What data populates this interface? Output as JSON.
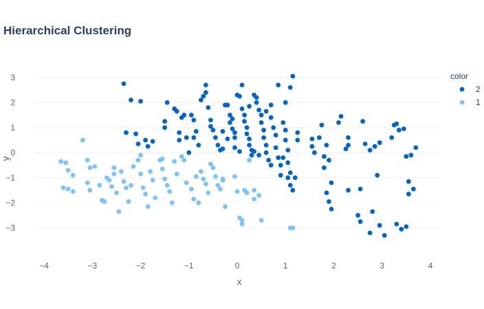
{
  "chart_data": {
    "type": "scatter",
    "title": "Hierarchical Clustering",
    "xlabel": "x",
    "ylabel": "y",
    "xlim": [
      -4.2,
      4.2
    ],
    "ylim": [
      -4.1,
      3.35
    ],
    "x_ticks": [
      -4,
      -3,
      -2,
      -1,
      0,
      1,
      2,
      3,
      4
    ],
    "y_ticks": [
      -3,
      -2,
      -1,
      0,
      1,
      2,
      3
    ],
    "x_tick_labels": [
      "−4",
      "−3",
      "−2",
      "−1",
      "0",
      "1",
      "2",
      "3",
      "4"
    ],
    "y_tick_labels": [
      "−3",
      "−2",
      "−1",
      "0",
      "1",
      "2",
      "3"
    ],
    "grid": "horizontal",
    "legend_title": "color",
    "legend_placement": "top-right",
    "series": [
      {
        "name": "2",
        "color": "#0064c8",
        "points": [
          [
            -2.35,
            2.75
          ],
          [
            -2.2,
            2.1
          ],
          [
            -2.0,
            2.05
          ],
          [
            -2.3,
            0.8
          ],
          [
            -2.1,
            0.75
          ],
          [
            -2.05,
            0.35
          ],
          [
            -1.9,
            0.5
          ],
          [
            -1.85,
            0.25
          ],
          [
            -1.75,
            0.45
          ],
          [
            -1.5,
            1.25
          ],
          [
            -1.5,
            1.0
          ],
          [
            -1.45,
            2.0
          ],
          [
            -1.3,
            1.75
          ],
          [
            -1.25,
            1.65
          ],
          [
            -1.15,
            1.4
          ],
          [
            -1.1,
            1.5
          ],
          [
            -1.2,
            0.8
          ],
          [
            -1.2,
            0.5
          ],
          [
            -1.05,
            0.6
          ],
          [
            -0.95,
            1.5
          ],
          [
            -0.9,
            1.3
          ],
          [
            -0.85,
            0.85
          ],
          [
            -0.9,
            0.6
          ],
          [
            -0.75,
            2.1
          ],
          [
            -0.7,
            2.25
          ],
          [
            -0.65,
            2.7
          ],
          [
            -0.65,
            2.4
          ],
          [
            -0.6,
            1.8
          ],
          [
            -0.55,
            1.3
          ],
          [
            -0.55,
            1.05
          ],
          [
            -0.5,
            0.9
          ],
          [
            -0.45,
            0.6
          ],
          [
            -0.4,
            0.3
          ],
          [
            -0.35,
            0.1
          ],
          [
            -0.3,
            0.15
          ],
          [
            -0.25,
            1.9
          ],
          [
            -0.2,
            1.9
          ],
          [
            -0.15,
            1.5
          ],
          [
            -0.15,
            1.2
          ],
          [
            -0.1,
            0.95
          ],
          [
            -0.05,
            0.8
          ],
          [
            -0.05,
            0.6
          ],
          [
            -0.05,
            0.2
          ],
          [
            0.0,
            2.3
          ],
          [
            0.05,
            2.25
          ],
          [
            0.1,
            2.7
          ],
          [
            0.1,
            1.75
          ],
          [
            0.15,
            1.5
          ],
          [
            0.15,
            1.25
          ],
          [
            0.2,
            1.0
          ],
          [
            0.2,
            0.75
          ],
          [
            0.25,
            0.55
          ],
          [
            0.25,
            0.3
          ],
          [
            0.3,
            0.1
          ],
          [
            0.3,
            -0.1
          ],
          [
            0.35,
            2.3
          ],
          [
            0.4,
            2.2
          ],
          [
            0.4,
            2.0
          ],
          [
            0.45,
            1.7
          ],
          [
            0.5,
            1.5
          ],
          [
            0.5,
            1.2
          ],
          [
            0.55,
            0.9
          ],
          [
            0.55,
            0.6
          ],
          [
            0.6,
            0.3
          ],
          [
            0.6,
            0.0
          ],
          [
            0.65,
            -0.3
          ],
          [
            0.7,
            1.9
          ],
          [
            0.7,
            1.4
          ],
          [
            0.75,
            1.0
          ],
          [
            0.8,
            0.7
          ],
          [
            0.8,
            0.2
          ],
          [
            0.85,
            -0.2
          ],
          [
            0.9,
            -0.5
          ],
          [
            0.9,
            -0.9
          ],
          [
            0.95,
            1.2
          ],
          [
            1.0,
            0.9
          ],
          [
            1.0,
            0.5
          ],
          [
            1.05,
            0.1
          ],
          [
            1.05,
            -0.4
          ],
          [
            1.1,
            -0.8
          ],
          [
            1.1,
            -1.3
          ],
          [
            1.15,
            3.05
          ],
          [
            1.1,
            2.6
          ],
          [
            1.15,
            -1.5
          ],
          [
            1.2,
            -1.0
          ],
          [
            1.25,
            0.5
          ],
          [
            1.25,
            0.8
          ],
          [
            0.85,
            2.7
          ],
          [
            1.0,
            2.0
          ],
          [
            0.45,
            -0.1
          ],
          [
            -0.3,
            0.85
          ],
          [
            -0.8,
            0.3
          ],
          [
            -1.0,
            0.0
          ],
          [
            -0.2,
            0.55
          ],
          [
            0.35,
            0.05
          ],
          [
            0.05,
            0.05
          ],
          [
            0.7,
            -0.5
          ],
          [
            0.95,
            -0.2
          ],
          [
            1.05,
            -1.0
          ],
          [
            0.6,
            1.65
          ],
          [
            -0.1,
            1.35
          ],
          [
            0.25,
            1.85
          ],
          [
            1.55,
            0.25
          ],
          [
            1.6,
            0.0
          ],
          [
            1.55,
            0.55
          ],
          [
            1.7,
            0.6
          ],
          [
            1.75,
            1.1
          ],
          [
            1.8,
            -0.15
          ],
          [
            1.85,
            0.3
          ],
          [
            1.9,
            -0.3
          ],
          [
            1.8,
            -0.6
          ],
          [
            1.95,
            -1.2
          ],
          [
            1.85,
            -1.6
          ],
          [
            1.9,
            -1.95
          ],
          [
            1.95,
            -2.25
          ],
          [
            2.1,
            1.2
          ],
          [
            2.15,
            1.45
          ],
          [
            2.3,
            0.6
          ],
          [
            2.3,
            0.3
          ],
          [
            2.25,
            0.15
          ],
          [
            2.3,
            -1.5
          ],
          [
            2.5,
            -2.5
          ],
          [
            2.55,
            -2.75
          ],
          [
            2.55,
            -1.45
          ],
          [
            2.6,
            1.25
          ],
          [
            2.65,
            0.35
          ],
          [
            2.75,
            0.1
          ],
          [
            2.8,
            -2.35
          ],
          [
            2.75,
            -3.2
          ],
          [
            2.85,
            0.25
          ],
          [
            2.9,
            -0.9
          ],
          [
            2.95,
            -2.9
          ],
          [
            2.95,
            0.4
          ],
          [
            3.05,
            -3.3
          ],
          [
            3.2,
            0.6
          ],
          [
            3.25,
            1.1
          ],
          [
            3.3,
            1.15
          ],
          [
            3.35,
            0.9
          ],
          [
            3.3,
            -2.85
          ],
          [
            3.4,
            -3.05
          ],
          [
            3.45,
            0.95
          ],
          [
            3.5,
            -0.15
          ],
          [
            3.5,
            -2.95
          ],
          [
            3.55,
            -1.15
          ],
          [
            3.55,
            -1.65
          ],
          [
            3.6,
            -0.1
          ],
          [
            3.65,
            -1.45
          ],
          [
            3.7,
            0.2
          ]
        ]
      },
      {
        "name": "1",
        "color": "#7ec3f7",
        "points": [
          [
            -3.65,
            -0.35
          ],
          [
            -3.55,
            -0.4
          ],
          [
            -3.5,
            -0.7
          ],
          [
            -3.4,
            -0.9
          ],
          [
            -3.6,
            -1.4
          ],
          [
            -3.5,
            -1.45
          ],
          [
            -3.4,
            -1.55
          ],
          [
            -3.2,
            0.5
          ],
          [
            -3.1,
            -0.3
          ],
          [
            -3.05,
            -0.6
          ],
          [
            -3.1,
            -1.2
          ],
          [
            -3.05,
            -1.5
          ],
          [
            -2.95,
            -0.55
          ],
          [
            -2.85,
            -1.3
          ],
          [
            -2.8,
            -1.9
          ],
          [
            -2.75,
            -1.95
          ],
          [
            -2.7,
            -1.0
          ],
          [
            -2.65,
            -1.1
          ],
          [
            -2.6,
            -1.35
          ],
          [
            -2.55,
            -0.6
          ],
          [
            -2.55,
            -0.85
          ],
          [
            -2.5,
            -1.6
          ],
          [
            -2.45,
            -2.35
          ],
          [
            -2.4,
            -0.75
          ],
          [
            -2.35,
            -1.15
          ],
          [
            -2.3,
            -1.4
          ],
          [
            -2.25,
            -1.95
          ],
          [
            -2.2,
            -1.3
          ],
          [
            -2.15,
            -0.55
          ],
          [
            -2.05,
            -0.3
          ],
          [
            -2.0,
            -0.1
          ],
          [
            -2.0,
            -0.85
          ],
          [
            -1.95,
            -1.4
          ],
          [
            -1.9,
            -1.65
          ],
          [
            -1.85,
            -2.15
          ],
          [
            -1.8,
            -0.75
          ],
          [
            -1.75,
            -1.1
          ],
          [
            -1.7,
            -1.8
          ],
          [
            -1.6,
            -0.3
          ],
          [
            -1.55,
            -0.65
          ],
          [
            -1.5,
            -1.05
          ],
          [
            -1.45,
            -1.3
          ],
          [
            -1.4,
            -1.55
          ],
          [
            -1.35,
            -2.0
          ],
          [
            -1.3,
            -0.35
          ],
          [
            -1.25,
            -0.85
          ],
          [
            -1.15,
            -0.15
          ],
          [
            -1.1,
            -0.3
          ],
          [
            -1.05,
            -1.2
          ],
          [
            -0.95,
            -1.45
          ],
          [
            -0.9,
            -1.85
          ],
          [
            -0.8,
            -2.0
          ],
          [
            -0.75,
            -0.75
          ],
          [
            -0.7,
            -1.05
          ],
          [
            -0.65,
            -1.25
          ],
          [
            -0.6,
            -1.6
          ],
          [
            -0.55,
            -0.45
          ],
          [
            -0.5,
            -0.6
          ],
          [
            -0.45,
            -0.95
          ],
          [
            -0.4,
            -1.3
          ],
          [
            -0.35,
            -1.45
          ],
          [
            -0.3,
            -1.1
          ],
          [
            -0.25,
            -2.15
          ],
          [
            -0.05,
            -0.95
          ],
          [
            0.0,
            -1.55
          ],
          [
            0.05,
            -2.6
          ],
          [
            0.1,
            -2.7
          ],
          [
            0.1,
            -2.85
          ],
          [
            0.15,
            -1.5
          ],
          [
            0.2,
            -1.6
          ],
          [
            0.25,
            -0.3
          ],
          [
            0.35,
            -1.85
          ],
          [
            0.45,
            -1.7
          ],
          [
            0.5,
            -2.7
          ],
          [
            1.1,
            -3.0
          ],
          [
            1.15,
            -3.0
          ],
          [
            -1.55,
            -0.25
          ],
          [
            -0.85,
            -0.95
          ],
          [
            -0.3,
            -1.05
          ],
          [
            0.35,
            -1.5
          ]
        ]
      }
    ]
  }
}
